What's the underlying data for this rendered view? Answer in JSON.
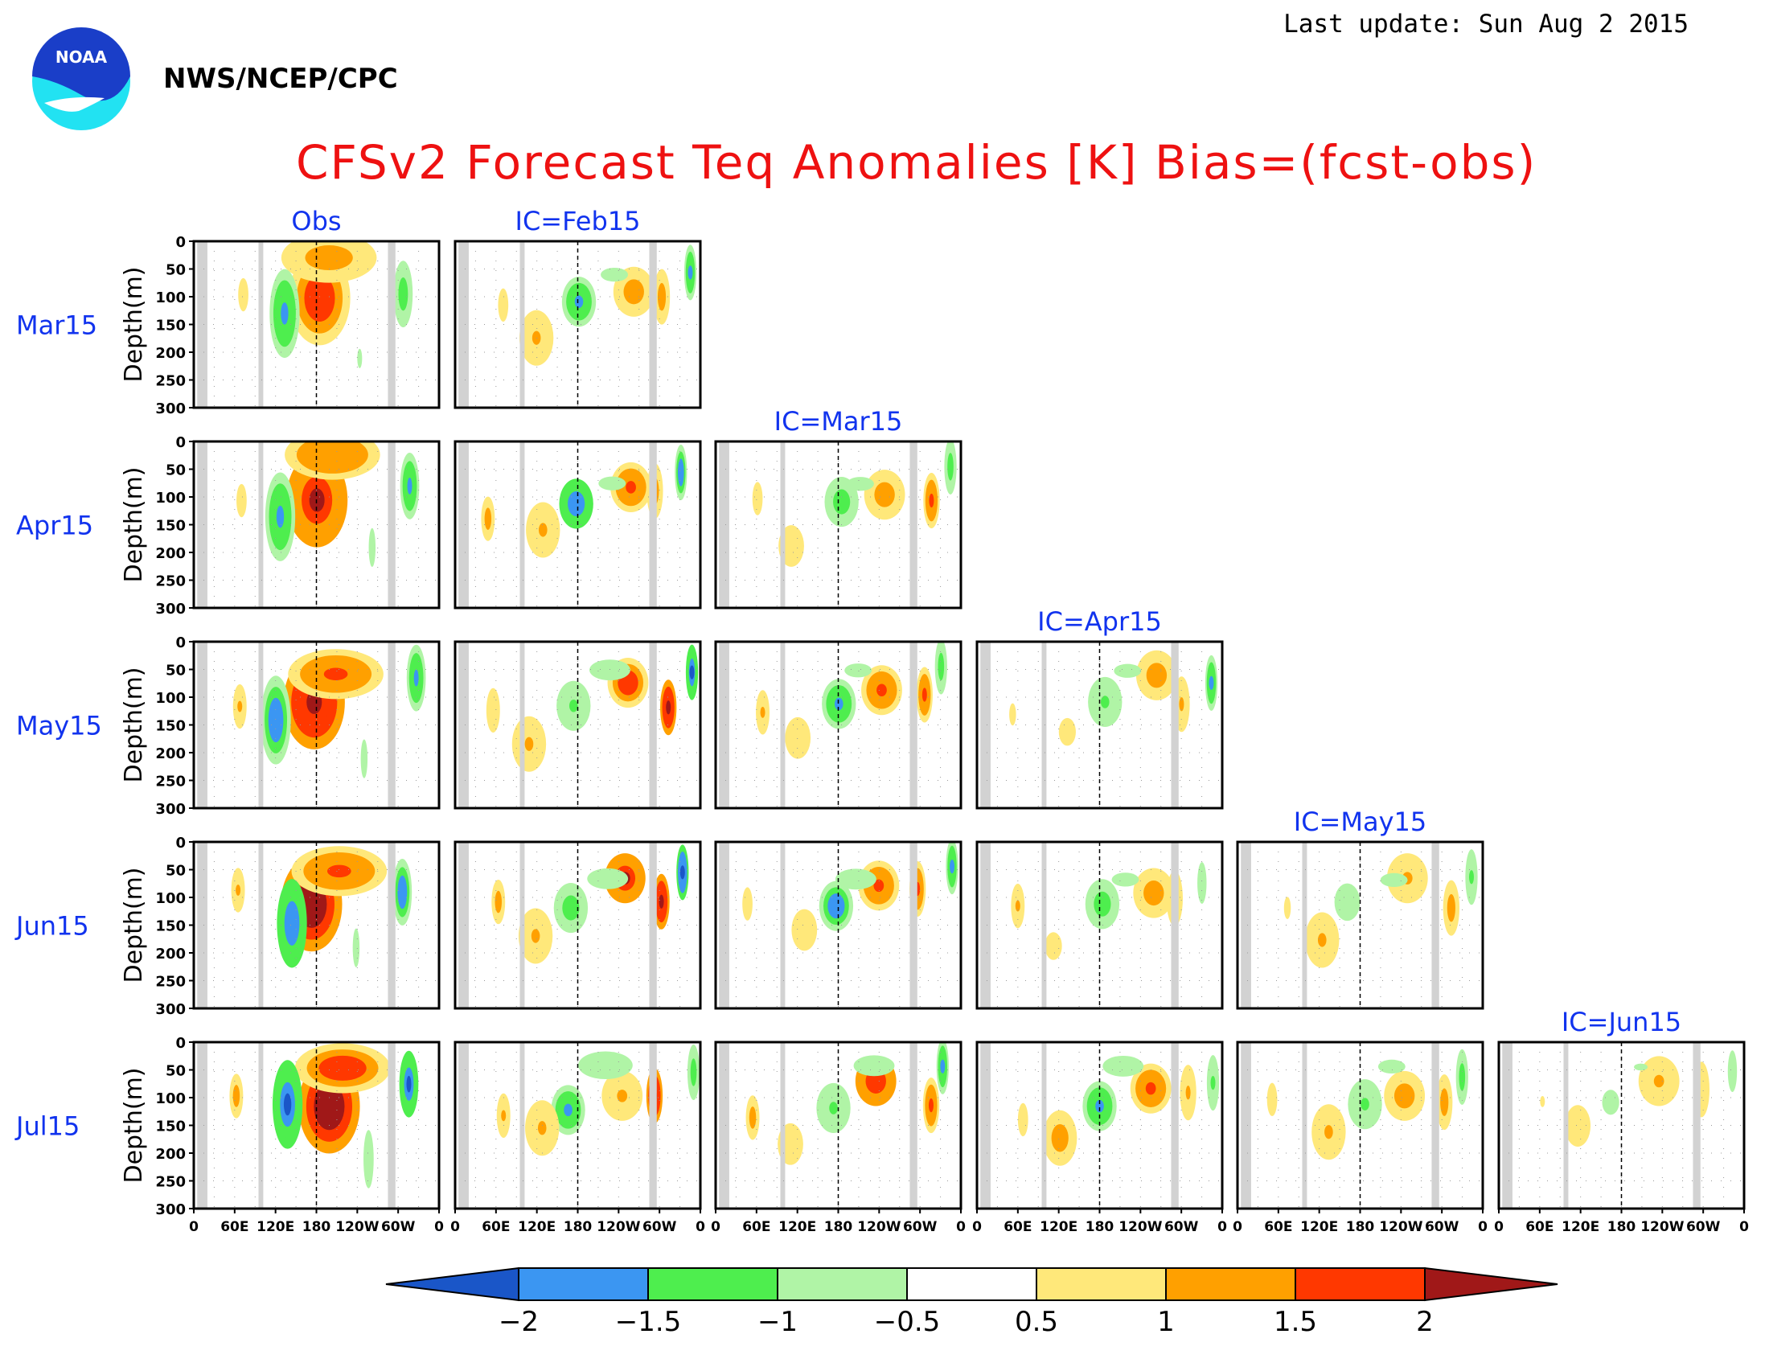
{
  "header": {
    "last_update": "Last update: Sun Aug  2 2015",
    "agency": "NWS/NCEP/CPC",
    "logo_text": "NOAA",
    "title": "CFSv2 Forecast Teq Anomalies [K] Bias=(fcst-obs)"
  },
  "colors": {
    "title": "#ee1111",
    "labels": "#1133ee",
    "land_mask": "#d2d2d2",
    "logo_blue": "#1a3ec8",
    "logo_cyan": "#22e2f2"
  },
  "chart_data": {
    "type": "heatmap",
    "panel_grid": "5 target months (rows) x up to 6 columns; column 1 = observed anomaly, columns 2-6 = forecast bias by initial condition",
    "columns": [
      "Obs",
      "IC=Feb15",
      "IC=Mar15",
      "IC=Apr15",
      "IC=May15",
      "IC=Jun15"
    ],
    "rows": [
      "Mar15",
      "Apr15",
      "May15",
      "Jun15",
      "Jul15"
    ],
    "ylabel": "Depth(m)",
    "y_ticks": [
      "0",
      "50",
      "100",
      "150",
      "200",
      "250",
      "300"
    ],
    "x_ticks": [
      "0",
      "60E",
      "120E",
      "180",
      "120W",
      "60W",
      "0"
    ],
    "ylim": [
      0,
      300
    ],
    "xlim": [
      0,
      360
    ],
    "land_mask_lon": [
      [
        5,
        20
      ],
      [
        95,
        102
      ],
      [
        285,
        296
      ]
    ],
    "date_line_lon": 180,
    "colorbar": {
      "levels": [
        -2,
        -1.5,
        -1,
        -0.5,
        0.5,
        1,
        1.5,
        2
      ],
      "level_labels": [
        "−2",
        "−1.5",
        "−1",
        "−0.5",
        "0.5",
        "1",
        "1.5",
        "2"
      ],
      "colors": [
        "#1a56c8",
        "#3b96f2",
        "#4eee4e",
        "#b0f4a6",
        "#ffffff",
        "#ffe87a",
        "#ffa000",
        "#ff3800",
        "#a01818"
      ]
    },
    "features": {
      "obs": [
        {
          "lon": 185,
          "depth": 100,
          "rx": 45,
          "ry": 85,
          "value": 2.4
        },
        {
          "lon": 210,
          "depth": 40,
          "rx": 70,
          "ry": 45,
          "value": 1.7
        },
        {
          "lon": 135,
          "depth": 130,
          "rx": 22,
          "ry": 80,
          "value": -1.9
        },
        {
          "lon": 320,
          "depth": 80,
          "rx": 14,
          "ry": 60,
          "value": -1.8
        },
        {
          "lon": 70,
          "depth": 100,
          "rx": 10,
          "ry": 40,
          "value": 1.1
        },
        {
          "lon": 250,
          "depth": 200,
          "rx": 10,
          "ry": 70,
          "value": -0.7
        }
      ],
      "bias": [
        {
          "lon": 175,
          "depth": 110,
          "rx": 25,
          "ry": 45,
          "value": -1.6
        },
        {
          "lon": 250,
          "depth": 80,
          "rx": 30,
          "ry": 45,
          "value": 1.6
        },
        {
          "lon": 120,
          "depth": 170,
          "rx": 25,
          "ry": 50,
          "value": 1.3
        },
        {
          "lon": 60,
          "depth": 120,
          "rx": 10,
          "ry": 40,
          "value": 1.2
        },
        {
          "lon": 305,
          "depth": 100,
          "rx": 12,
          "ry": 50,
          "value": 1.8
        },
        {
          "lon": 340,
          "depth": 60,
          "rx": 9,
          "ry": 50,
          "value": -1.7
        },
        {
          "lon": 220,
          "depth": 60,
          "rx": 40,
          "ry": 25,
          "value": -0.9
        }
      ]
    }
  }
}
